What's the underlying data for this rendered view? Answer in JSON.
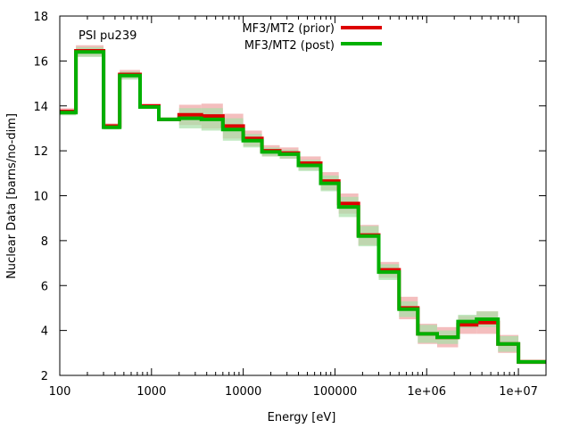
{
  "chart_data": {
    "type": "line",
    "step": true,
    "title": "PSI pu239",
    "xlabel": "Energy [eV]",
    "ylabel": "Nuclear Data [barns/no-dim]",
    "xscale": "log",
    "xlim": [
      100,
      20000000
    ],
    "ylim": [
      2,
      18
    ],
    "legend_position": "top-center",
    "x_ticks": [
      {
        "value": 100,
        "label": "100"
      },
      {
        "value": 1000,
        "label": "1000"
      },
      {
        "value": 10000,
        "label": "10000"
      },
      {
        "value": 100000,
        "label": "100000"
      },
      {
        "value": 1000000,
        "label": "1e+06"
      },
      {
        "value": 10000000,
        "label": "1e+07"
      }
    ],
    "y_ticks": [
      {
        "value": 2,
        "label": "2"
      },
      {
        "value": 4,
        "label": "4"
      },
      {
        "value": 6,
        "label": "6"
      },
      {
        "value": 8,
        "label": "8"
      },
      {
        "value": 10,
        "label": "10"
      },
      {
        "value": 12,
        "label": "12"
      },
      {
        "value": 14,
        "label": "14"
      },
      {
        "value": 16,
        "label": "16"
      },
      {
        "value": 18,
        "label": "18"
      }
    ],
    "bin_edges": [
      100,
      150,
      300,
      450,
      750,
      1200,
      2000,
      3500,
      6000,
      10000,
      16000,
      25000,
      40000,
      70000,
      110000,
      180000,
      300000,
      500000,
      800000,
      1300000,
      2200000,
      3500000,
      6000000,
      10000000,
      20000000
    ],
    "series": [
      {
        "name": "MF3/MT2 (prior)",
        "color": "#dd0000",
        "band_color": "#f0a8a8",
        "values": [
          13.75,
          16.45,
          13.1,
          15.4,
          14.0,
          13.4,
          13.6,
          13.55,
          13.1,
          12.55,
          12.0,
          11.9,
          11.45,
          10.65,
          9.65,
          8.25,
          6.7,
          5.0,
          3.85,
          3.7,
          4.25,
          4.35,
          3.4,
          2.6
        ],
        "uncertainties": [
          0.15,
          0.25,
          0.12,
          0.2,
          0.05,
          0.05,
          0.45,
          0.55,
          0.55,
          0.35,
          0.25,
          0.25,
          0.3,
          0.4,
          0.45,
          0.45,
          0.35,
          0.5,
          0.45,
          0.45,
          0.4,
          0.5,
          0.4,
          0.1
        ]
      },
      {
        "name": "MF3/MT2 (post)",
        "color": "#00b000",
        "band_color": "#a8e0a8",
        "values": [
          13.7,
          16.4,
          13.05,
          15.35,
          13.95,
          13.4,
          13.45,
          13.4,
          12.95,
          12.45,
          11.95,
          11.85,
          11.35,
          10.55,
          9.5,
          8.2,
          6.6,
          4.95,
          3.85,
          3.7,
          4.4,
          4.5,
          3.4,
          2.6
        ],
        "uncertainties": [
          0.12,
          0.22,
          0.1,
          0.18,
          0.05,
          0.05,
          0.45,
          0.5,
          0.5,
          0.3,
          0.2,
          0.2,
          0.25,
          0.35,
          0.45,
          0.45,
          0.35,
          0.35,
          0.4,
          0.3,
          0.3,
          0.35,
          0.35,
          0.08
        ]
      }
    ]
  }
}
